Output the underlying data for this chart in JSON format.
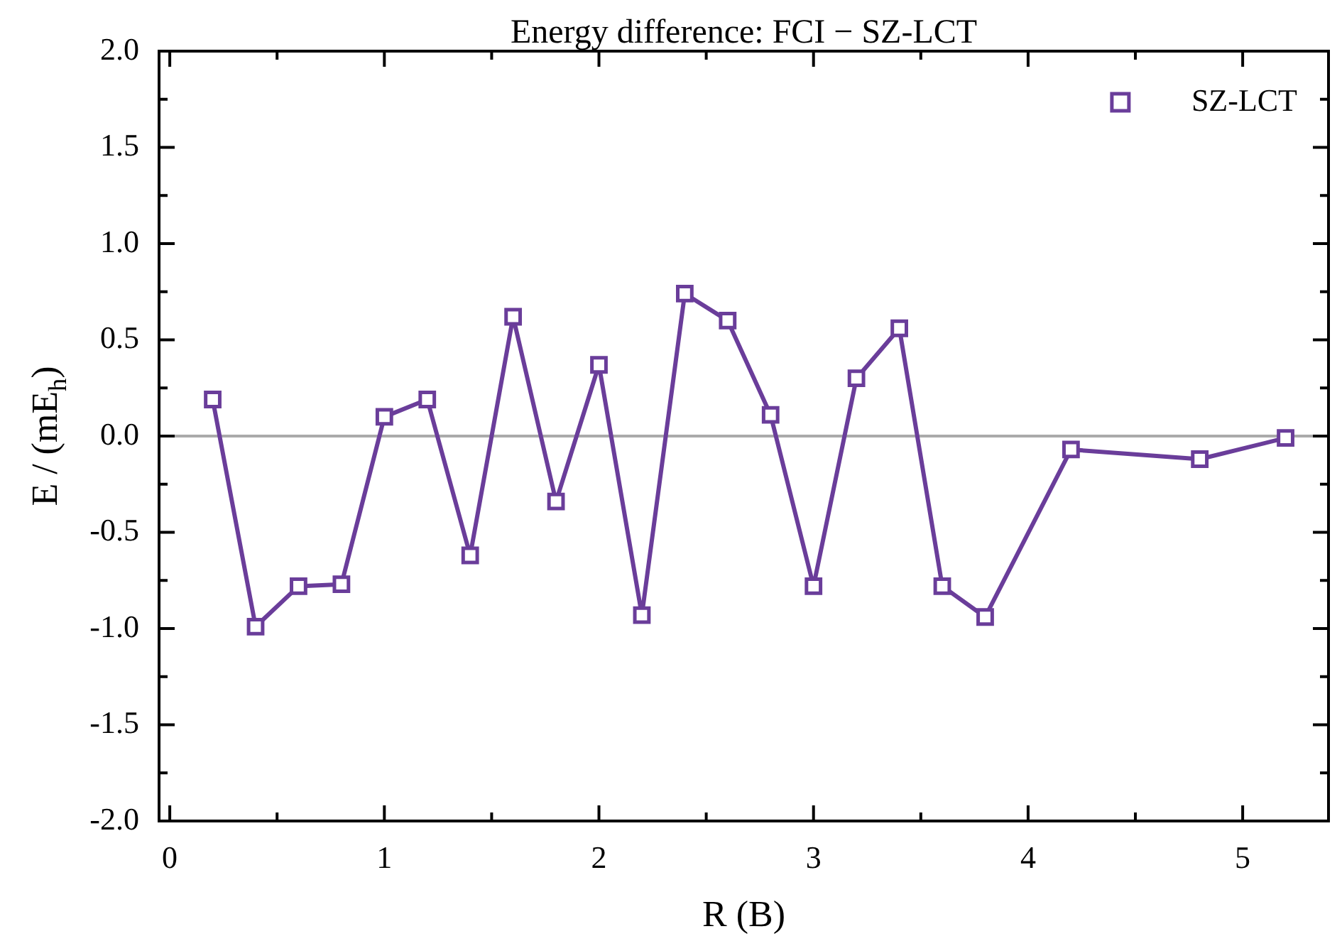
{
  "chart_data": {
    "type": "line",
    "title": "Energy difference: FCI − SZ-LCT",
    "xlabel": "R (B)",
    "ylabel": "E / (mE$_{h}$)",
    "x": [
      0.2,
      0.4,
      0.6,
      0.8,
      1.0,
      1.2,
      1.4,
      1.6,
      1.8,
      2.0,
      2.2,
      2.4,
      2.6,
      2.8,
      3.0,
      3.2,
      3.4,
      3.6,
      3.8,
      4.2,
      4.8,
      5.2
    ],
    "series": [
      {
        "name": "SZ-LCT",
        "color": "#6a3d9a",
        "values": [
          0.19,
          -0.99,
          -0.78,
          -0.77,
          0.1,
          0.19,
          -0.62,
          0.62,
          -0.34,
          0.37,
          -0.93,
          0.74,
          0.6,
          0.11,
          -0.78,
          0.3,
          0.56,
          -0.78,
          -0.94,
          -0.07,
          -0.12,
          -0.01
        ]
      }
    ],
    "xlim": [
      -0.05,
      5.4
    ],
    "xticks": [
      0,
      {
        "value": 0.5,
        "label": null
      },
      1,
      {
        "value": 1.5,
        "label": null
      },
      2,
      {
        "value": 2.5,
        "label": null
      },
      3,
      {
        "value": 3.5,
        "label": null
      },
      4,
      {
        "value": 4.5,
        "label": null
      },
      5
    ],
    "ylim": [
      -2,
      2
    ],
    "yticks": [
      {
        "value": -2,
        "label": "-2.0"
      },
      {
        "value": -1.75,
        "label": null
      },
      {
        "value": -1.5,
        "label": "-1.5"
      },
      {
        "value": -1.25,
        "label": null
      },
      {
        "value": -1,
        "label": "-1.0"
      },
      {
        "value": -0.75,
        "label": null
      },
      {
        "value": -0.5,
        "label": "-0.5"
      },
      {
        "value": -0.25,
        "label": null
      },
      {
        "value": 0,
        "label": "0.0"
      },
      {
        "value": 0.25,
        "label": null
      },
      {
        "value": 0.5,
        "label": "0.5"
      },
      {
        "value": 0.75,
        "label": null
      },
      {
        "value": 1,
        "label": "1.0"
      },
      {
        "value": 1.25,
        "label": null
      },
      {
        "value": 1.5,
        "label": "1.5"
      },
      {
        "value": 1.75,
        "label": null
      },
      {
        "value": 2,
        "label": "2.0"
      }
    ],
    "ref_lines": [
      {
        "axis": "y",
        "value": 0,
        "color": "#aaaaaa"
      }
    ],
    "grid": false,
    "legend": "top right",
    "marker": "square",
    "line_style": "solid"
  }
}
